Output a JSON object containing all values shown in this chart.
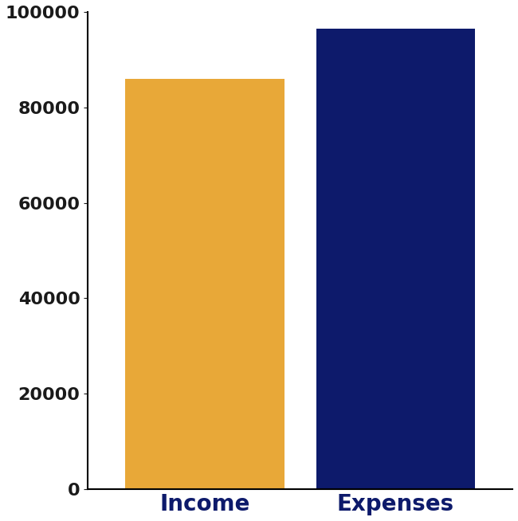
{
  "categories": [
    "Income",
    "Expenses"
  ],
  "values": [
    86000,
    96500
  ],
  "bar_colors": [
    "#E8A838",
    "#0D1A6B"
  ],
  "ylim": [
    0,
    100000
  ],
  "yticks": [
    0,
    20000,
    40000,
    60000,
    80000,
    100000
  ],
  "background_color": "#ffffff",
  "tick_label_color": "#1a1a1a",
  "xlabel_color": "#0D1A6B",
  "xlabel_fontsize": 20,
  "xlabel_fontweight": "bold",
  "ytick_fontsize": 16,
  "ytick_fontweight": "bold",
  "bar_width": 0.75,
  "axes_linewidth": 1.5,
  "bar_spacing": 0.9
}
